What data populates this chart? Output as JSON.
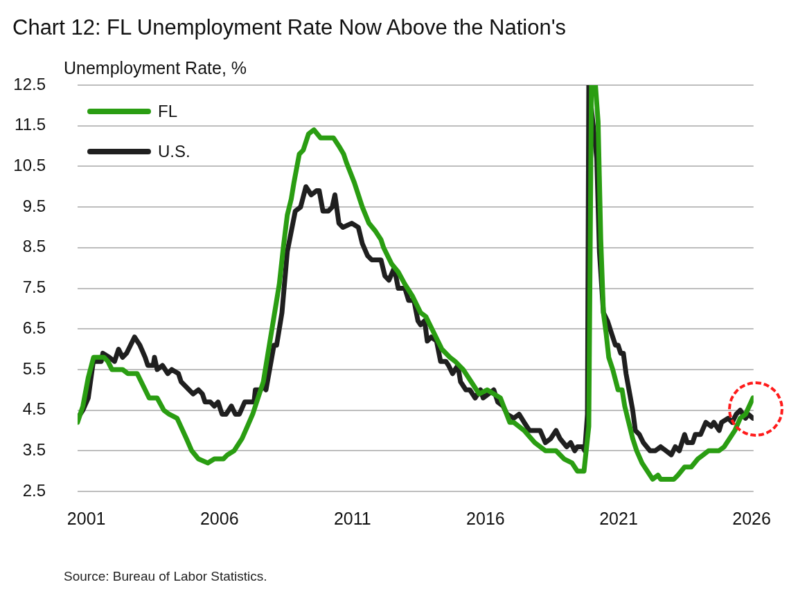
{
  "chart_data": {
    "type": "line",
    "title": "Chart 12: FL Unemployment Rate Now Above the Nation's",
    "ylabel": "Unemployment Rate, %",
    "annotations": [
      "Source: Bureau of Labor Statistics."
    ],
    "xlim": [
      2000.67,
      2026.07
    ],
    "xticks": [
      2001,
      2006,
      2011,
      2016,
      2021,
      2026
    ],
    "ylim": [
      2.5,
      12.5
    ],
    "yticks": [
      2.5,
      3.5,
      4.5,
      5.5,
      6.5,
      7.5,
      8.5,
      9.5,
      10.5,
      11.5,
      12.5
    ],
    "grid": "y",
    "legend": "top left",
    "series": [
      {
        "name": "FL",
        "color": "#2a9d12",
        "x": [
          2000.67,
          2000.87,
          2001.07,
          2001.27,
          2001.47,
          2001.66,
          2001.81,
          2001.96,
          2002.36,
          2002.56,
          2002.91,
          2003.06,
          2003.36,
          2003.66,
          2003.91,
          2004.11,
          2004.41,
          2004.76,
          2004.96,
          2005.21,
          2005.56,
          2005.81,
          2006.15,
          2006.3,
          2006.55,
          2006.85,
          2007.05,
          2007.25,
          2007.45,
          2007.65,
          2007.85,
          2008.05,
          2008.25,
          2008.4,
          2008.55,
          2008.7,
          2008.8,
          2009.0,
          2009.15,
          2009.35,
          2009.55,
          2009.8,
          2010.29,
          2010.49,
          2010.67,
          2010.77,
          2011.07,
          2011.17,
          2011.37,
          2011.62,
          2011.87,
          2012.07,
          2012.17,
          2012.47,
          2012.72,
          2012.97,
          2013.26,
          2013.56,
          2013.76,
          2014.06,
          2014.36,
          2014.66,
          2014.86,
          2015.16,
          2015.46,
          2015.76,
          2016.06,
          2016.56,
          2016.91,
          2017.06,
          2017.45,
          2017.85,
          2018.25,
          2018.65,
          2018.95,
          2019.25,
          2019.45,
          2019.7,
          2019.88,
          2019.98,
          2020.13,
          2020.23,
          2020.33,
          2020.43,
          2020.53,
          2020.63,
          2020.78,
          2020.98,
          2021.13,
          2021.23,
          2021.38,
          2021.53,
          2021.68,
          2021.88,
          2022.08,
          2022.28,
          2022.48,
          2022.58,
          2023.08,
          2023.23,
          2023.48,
          2023.73,
          2023.98,
          2024.18,
          2024.38,
          2024.77,
          2024.97,
          2025.17,
          2025.37,
          2025.57,
          2025.77,
          2026.05
        ],
        "values": [
          4.2,
          4.6,
          5.3,
          5.8,
          5.8,
          5.8,
          5.7,
          5.5,
          5.5,
          5.4,
          5.4,
          5.2,
          4.8,
          4.8,
          4.5,
          4.4,
          4.3,
          3.8,
          3.5,
          3.3,
          3.2,
          3.3,
          3.3,
          3.4,
          3.5,
          3.8,
          4.1,
          4.4,
          4.8,
          5.2,
          6.0,
          6.8,
          7.6,
          8.5,
          9.3,
          9.7,
          10.1,
          10.8,
          10.9,
          11.3,
          11.4,
          11.2,
          11.2,
          11.0,
          10.8,
          10.6,
          10.1,
          9.9,
          9.5,
          9.1,
          8.9,
          8.7,
          8.5,
          8.1,
          7.9,
          7.6,
          7.3,
          6.9,
          6.8,
          6.4,
          6.0,
          5.8,
          5.7,
          5.5,
          5.2,
          4.9,
          5.0,
          4.8,
          4.2,
          4.2,
          4.0,
          3.7,
          3.5,
          3.5,
          3.3,
          3.2,
          3.0,
          3.0,
          4.1,
          12.5,
          12.5,
          11.6,
          8.7,
          6.9,
          6.4,
          5.8,
          5.5,
          5.0,
          5.0,
          4.6,
          4.2,
          3.8,
          3.5,
          3.2,
          3.0,
          2.8,
          2.9,
          2.8,
          2.8,
          2.9,
          3.1,
          3.1,
          3.3,
          3.4,
          3.5,
          3.5,
          3.6,
          3.8,
          4.0,
          4.3,
          4.4,
          4.8
        ]
      },
      {
        "name": "U.S.",
        "color": "#1f1f1f",
        "x": [
          2000.67,
          2000.87,
          2001.07,
          2001.26,
          2001.56,
          2001.62,
          2001.86,
          2002.06,
          2002.21,
          2002.36,
          2002.51,
          2002.66,
          2002.81,
          2003.01,
          2003.21,
          2003.31,
          2003.51,
          2003.56,
          2003.66,
          2003.86,
          2004.06,
          2004.21,
          2004.46,
          2004.56,
          2004.86,
          2005.01,
          2005.21,
          2005.36,
          2005.46,
          2005.66,
          2005.81,
          2005.95,
          2006.1,
          2006.25,
          2006.45,
          2006.6,
          2006.75,
          2006.95,
          2007.15,
          2007.3,
          2007.35,
          2007.55,
          2007.65,
          2007.75,
          2008.05,
          2008.15,
          2008.35,
          2008.55,
          2008.85,
          2009.05,
          2009.25,
          2009.45,
          2009.65,
          2009.75,
          2009.89,
          2010.09,
          2010.24,
          2010.34,
          2010.49,
          2010.64,
          2010.97,
          2011.22,
          2011.37,
          2011.57,
          2011.72,
          2012.07,
          2012.22,
          2012.37,
          2012.57,
          2012.72,
          2012.97,
          2013.11,
          2013.31,
          2013.46,
          2013.56,
          2013.71,
          2013.81,
          2013.96,
          2014.16,
          2014.31,
          2014.51,
          2014.61,
          2014.76,
          2014.96,
          2015.06,
          2015.26,
          2015.41,
          2015.61,
          2015.81,
          2015.91,
          2016.11,
          2016.31,
          2016.46,
          2016.66,
          2016.81,
          2017.06,
          2017.26,
          2017.45,
          2017.65,
          2017.85,
          2018.05,
          2018.25,
          2018.45,
          2018.65,
          2018.8,
          2019.05,
          2019.2,
          2019.35,
          2019.45,
          2019.65,
          2019.73,
          2019.83,
          2019.88,
          2020.18,
          2020.28,
          2020.43,
          2020.58,
          2020.73,
          2020.88,
          2020.98,
          2021.08,
          2021.18,
          2021.28,
          2021.53,
          2021.63,
          2021.78,
          2021.93,
          2022.18,
          2022.38,
          2022.58,
          2022.78,
          2022.98,
          2023.13,
          2023.28,
          2023.48,
          2023.58,
          2023.78,
          2023.88,
          2024.08,
          2024.28,
          2024.48,
          2024.58,
          2024.78,
          2024.87,
          2025.12,
          2025.27,
          2025.42,
          2025.57,
          2025.77,
          2025.87,
          2026.05
        ],
        "values": [
          4.3,
          4.5,
          4.8,
          5.7,
          5.7,
          5.9,
          5.8,
          5.7,
          6.0,
          5.8,
          5.9,
          6.1,
          6.3,
          6.1,
          5.8,
          5.6,
          5.6,
          5.8,
          5.5,
          5.6,
          5.4,
          5.5,
          5.4,
          5.2,
          5.0,
          4.9,
          5.0,
          4.9,
          4.7,
          4.7,
          4.6,
          4.7,
          4.4,
          4.4,
          4.6,
          4.4,
          4.4,
          4.7,
          4.7,
          4.7,
          5.0,
          5.0,
          5.1,
          5.0,
          6.1,
          6.1,
          6.9,
          8.4,
          9.4,
          9.5,
          10.0,
          9.8,
          9.9,
          9.9,
          9.4,
          9.4,
          9.5,
          9.8,
          9.1,
          9.0,
          9.1,
          9.0,
          8.6,
          8.3,
          8.2,
          8.2,
          7.8,
          7.7,
          8.0,
          7.5,
          7.5,
          7.2,
          7.2,
          6.7,
          6.6,
          6.7,
          6.2,
          6.3,
          6.2,
          5.7,
          5.7,
          5.6,
          5.4,
          5.6,
          5.2,
          5.0,
          5.0,
          4.8,
          5.0,
          4.8,
          4.9,
          5.0,
          4.7,
          4.6,
          4.4,
          4.3,
          4.4,
          4.2,
          4.0,
          4.0,
          4.0,
          3.7,
          3.8,
          4.0,
          3.8,
          3.6,
          3.7,
          3.5,
          3.6,
          3.6,
          3.5,
          4.4,
          12.5,
          10.7,
          8.4,
          6.9,
          6.7,
          6.4,
          6.1,
          6.1,
          5.9,
          5.9,
          5.4,
          4.5,
          4.0,
          3.9,
          3.7,
          3.5,
          3.5,
          3.6,
          3.5,
          3.4,
          3.6,
          3.5,
          3.9,
          3.7,
          3.7,
          3.9,
          3.9,
          4.2,
          4.1,
          4.2,
          4.0,
          4.2,
          4.3,
          4.2,
          4.4,
          4.5,
          4.3,
          4.4,
          4.3
        ]
      }
    ]
  }
}
